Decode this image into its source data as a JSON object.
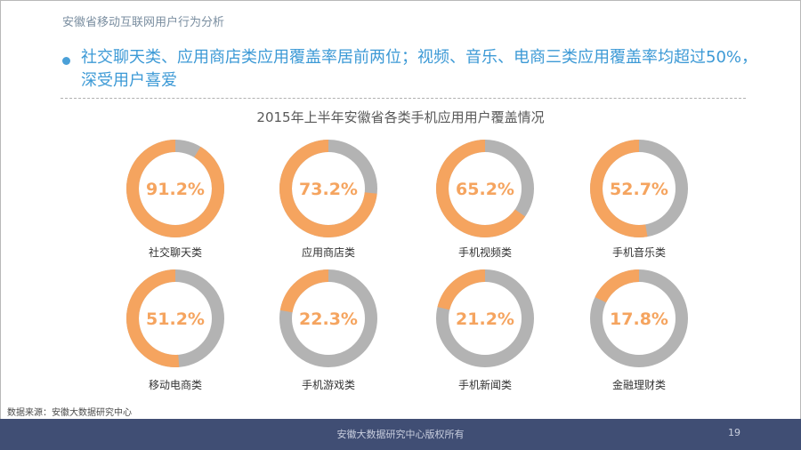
{
  "header": {
    "section_title": "安徽省移动互联网用户行为分析",
    "headline": "社交聊天类、应用商店类应用覆盖率居前两位；视频、音乐、电商三类应用覆盖率均超过50%，深受用户喜爱"
  },
  "colors": {
    "accent": "#f5a45f",
    "track": "#b3b3b3",
    "headline": "#3d9ad6",
    "footer_bg": "#404e74"
  },
  "chart_data": {
    "type": "donut",
    "title": "2015年上半年安徽省各类手机应用用户覆盖情况",
    "unit": "%",
    "categories": [
      "社交聊天类",
      "应用商店类",
      "手机视频类",
      "手机音乐类",
      "移动电商类",
      "手机游戏类",
      "手机新闻类",
      "金融理财类"
    ],
    "values": [
      91.2,
      73.2,
      65.2,
      52.7,
      51.2,
      22.3,
      21.2,
      17.8
    ],
    "value_labels": [
      "91.2%",
      "73.2%",
      "65.2%",
      "52.7%",
      "51.2%",
      "22.3%",
      "21.2%",
      "17.8%"
    ]
  },
  "footer": {
    "source": "数据来源：安徽大数据研究中心",
    "copyright": "安徽大数据研究中心版权所有",
    "page_number": "19"
  }
}
